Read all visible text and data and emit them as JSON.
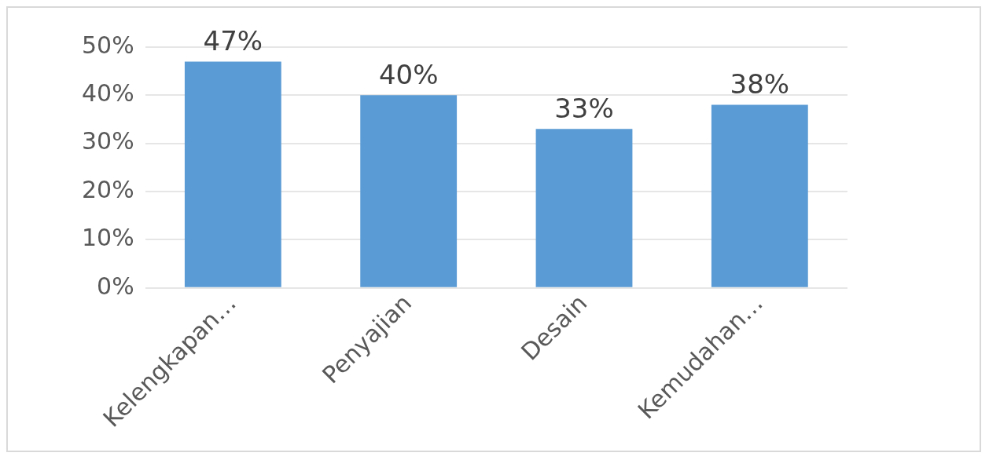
{
  "chart_data": {
    "type": "bar",
    "categories": [
      "Kelengkapan…",
      "Penyajian",
      "Desain",
      "Kemudahan…"
    ],
    "values": [
      47,
      40,
      33,
      38
    ],
    "color": "#5b9bd5",
    "value_labels": [
      "47%",
      "40%",
      "33%",
      "38%"
    ],
    "ylim": [
      0,
      50
    ],
    "yticks": [
      {
        "value": 0,
        "label": "0%"
      },
      {
        "value": 10,
        "label": "10%"
      },
      {
        "value": 20,
        "label": "20%"
      },
      {
        "value": 30,
        "label": "30%"
      },
      {
        "value": 40,
        "label": "40%"
      },
      {
        "value": 50,
        "label": "50%"
      }
    ],
    "grid": "y",
    "legend": false
  }
}
